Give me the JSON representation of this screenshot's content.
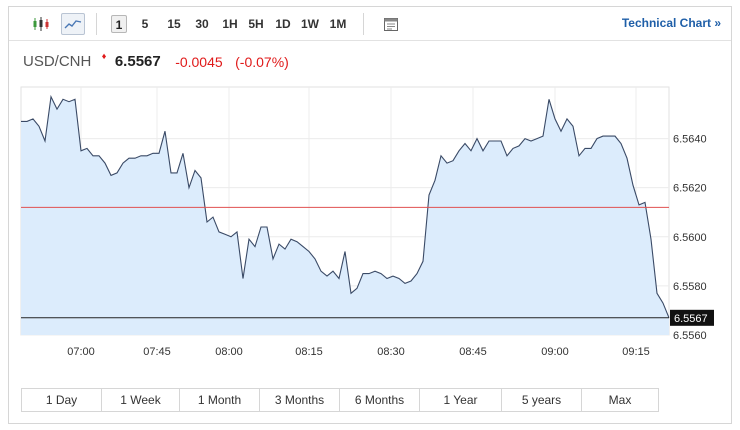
{
  "toolbar": {
    "icons": [
      "candlestick-chart-icon",
      "line-chart-icon",
      "calendar-icon"
    ],
    "periods": [
      "1",
      "5",
      "15",
      "30",
      "1H",
      "5H",
      "1D",
      "1W",
      "1M"
    ],
    "active_period": "1",
    "technical_chart_label": "Technical Chart »"
  },
  "quote": {
    "symbol": "USD/CNH",
    "price": "6.5567",
    "change": "-0.0045",
    "change_pct": "(-0.07%)",
    "direction_arrow": "♦"
  },
  "colors": {
    "area_fill": "#dcecfc",
    "line": "#3a4a66",
    "reference_line": "#e05050",
    "last_price_line": "#222222",
    "negative": "#e01a1a",
    "link": "#1f5fa8"
  },
  "chart_data": {
    "type": "area",
    "x_ticks": [
      "07:00",
      "07:45",
      "08:00",
      "08:15",
      "08:30",
      "08:45",
      "09:00",
      "09:15"
    ],
    "y_ticks": [
      "6.5640",
      "6.5620",
      "6.5600",
      "6.5580",
      "6.5560"
    ],
    "ylim": [
      6.556,
      6.5661
    ],
    "reference_value": 6.5612,
    "last_value_label": "6.5567",
    "last_value": 6.5567,
    "y": [
      6.5647,
      6.5647,
      6.5648,
      6.5645,
      6.5639,
      6.5657,
      6.5652,
      6.5656,
      6.5655,
      6.5656,
      6.5635,
      6.5636,
      6.5633,
      6.5633,
      6.563,
      6.5625,
      6.5626,
      6.563,
      6.5632,
      6.5632,
      6.5633,
      6.5633,
      6.5634,
      6.5634,
      6.5643,
      6.5626,
      6.5626,
      6.5634,
      6.562,
      6.5627,
      6.5624,
      6.5606,
      6.5608,
      6.5602,
      6.5601,
      6.56,
      6.5602,
      6.5583,
      6.5599,
      6.5596,
      6.5604,
      6.5604,
      6.5591,
      6.5597,
      6.5595,
      6.5599,
      6.5598,
      6.5596,
      6.5594,
      6.5591,
      6.5586,
      6.5584,
      6.5586,
      6.5583,
      6.5594,
      6.5577,
      6.5579,
      6.5585,
      6.5585,
      6.5586,
      6.5585,
      6.5583,
      6.5584,
      6.5583,
      6.5581,
      6.5582,
      6.5585,
      6.559,
      6.5617,
      6.5623,
      6.5633,
      6.563,
      6.5631,
      6.5635,
      6.5638,
      6.5635,
      6.564,
      6.5635,
      6.5639,
      6.5639,
      6.5639,
      6.5633,
      6.5636,
      6.5637,
      6.564,
      6.5639,
      6.564,
      6.5641,
      6.5656,
      6.5648,
      6.5643,
      6.5648,
      6.5645,
      6.5633,
      6.5636,
      6.5636,
      6.564,
      6.5641,
      6.5641,
      6.5641,
      6.5638,
      6.5632,
      6.5621,
      6.5613,
      6.5614,
      6.5599,
      6.5577,
      6.5573,
      6.5567
    ]
  },
  "ranges": [
    "1 Day",
    "1 Week",
    "1 Month",
    "3 Months",
    "6 Months",
    "1 Year",
    "5 years",
    "Max"
  ]
}
